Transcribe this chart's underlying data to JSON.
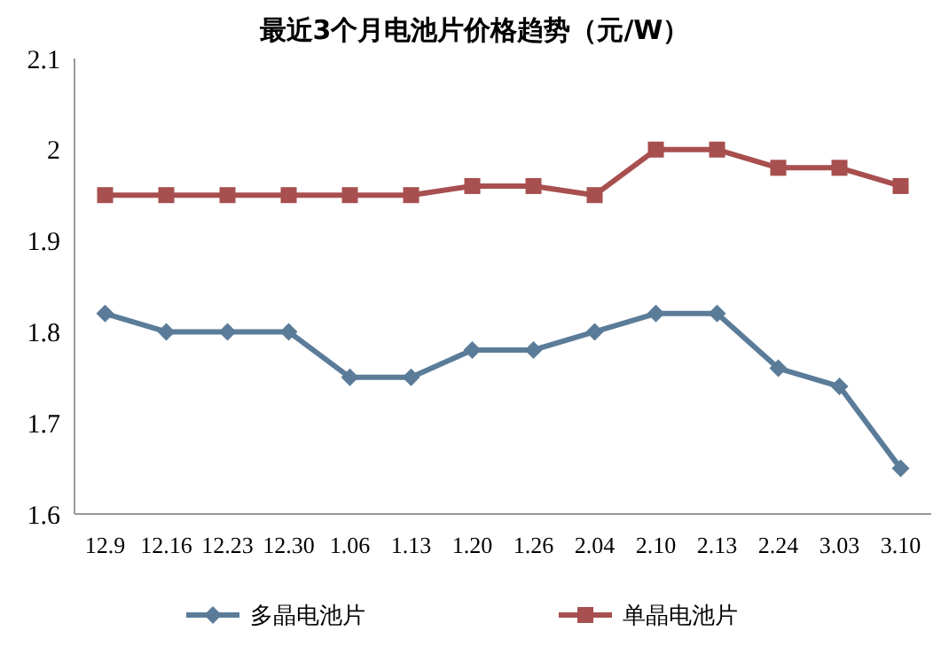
{
  "chart_data": {
    "type": "line",
    "title": "最近3个月电池片价格趋势（元/W）",
    "categories": [
      "12.9",
      "12.16",
      "12.23",
      "12.30",
      "1.06",
      "1.13",
      "1.20",
      "1.26",
      "2.04",
      "2.10",
      "2.13",
      "2.24",
      "3.03",
      "3.10"
    ],
    "series": [
      {
        "name": "多晶电池片",
        "color": "#5b7c99",
        "marker": "diamond",
        "values": [
          1.82,
          1.8,
          1.8,
          1.8,
          1.75,
          1.75,
          1.78,
          1.78,
          1.8,
          1.82,
          1.82,
          1.76,
          1.74,
          1.65
        ]
      },
      {
        "name": "单晶电池片",
        "color": "#a84f4f",
        "marker": "square",
        "values": [
          1.95,
          1.95,
          1.95,
          1.95,
          1.95,
          1.95,
          1.96,
          1.96,
          1.95,
          2.0,
          2.0,
          1.98,
          1.98,
          1.96
        ]
      }
    ],
    "ylim": [
      1.6,
      2.1
    ],
    "yticks": [
      1.6,
      1.7,
      1.8,
      1.9,
      2,
      2.1
    ],
    "grid": false,
    "legend": "bottom",
    "line_style": "solid"
  }
}
